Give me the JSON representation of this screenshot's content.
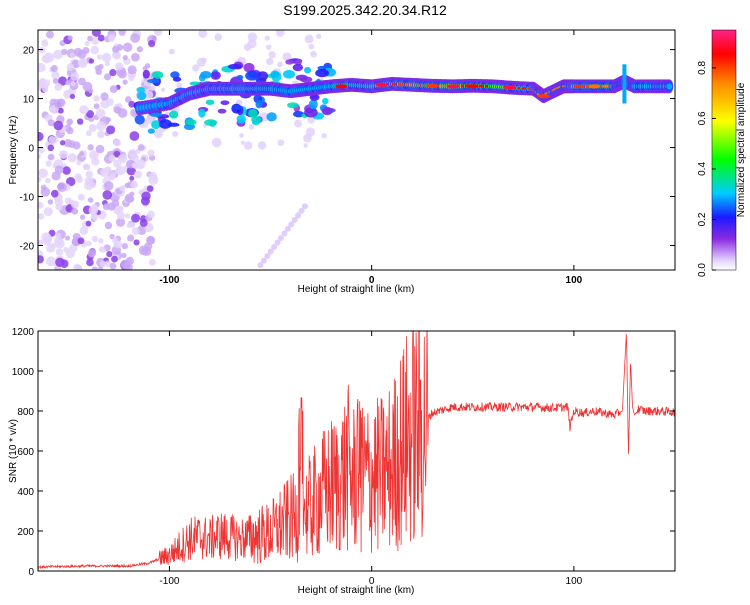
{
  "title": "S199.2025.342.20.34.R12",
  "chart_data": [
    {
      "type": "heatmap",
      "title": "S199.2025.342.20.34.R12",
      "xlabel": "Height of straight line (km)",
      "ylabel": "Frequency (Hz)",
      "xlim": [
        -165,
        150
      ],
      "ylim": [
        -25,
        24
      ],
      "xticks": [
        -100,
        0,
        100
      ],
      "yticks": [
        20,
        10,
        0,
        -10,
        -20
      ],
      "colorbar": {
        "label": "Normalized spectral amplitude",
        "ticks": [
          0.0,
          0.2,
          0.4,
          0.6,
          0.8
        ],
        "range": [
          0,
          0.95
        ]
      },
      "ridge": {
        "x": [
          -115,
          -100,
          -90,
          -80,
          -70,
          -60,
          -50,
          -40,
          -30,
          -20,
          -10,
          0,
          10,
          20,
          30,
          40,
          50,
          60,
          70,
          80,
          85,
          90,
          95,
          100,
          110,
          120,
          125,
          130,
          140,
          148
        ],
        "freq": [
          8,
          9,
          11,
          12,
          12,
          12,
          12,
          11.5,
          12,
          12.5,
          12.8,
          12.5,
          13,
          12.8,
          12.6,
          12.5,
          12.6,
          12.5,
          12.2,
          12.0,
          10.5,
          11.5,
          12.5,
          12.5,
          12.5,
          12.5,
          13.5,
          12.5,
          12.5,
          12.5
        ],
        "amplitude": [
          0.25,
          0.35,
          0.4,
          0.4,
          0.4,
          0.35,
          0.35,
          0.3,
          0.35,
          0.5,
          0.7,
          0.65,
          0.85,
          0.75,
          0.8,
          0.9,
          0.85,
          0.85,
          0.9,
          0.8,
          0.7,
          0.75,
          0.75,
          0.8,
          0.8,
          0.7,
          0.6,
          0.5,
          0.5,
          0.5
        ]
      }
    },
    {
      "type": "line",
      "xlabel": "Height of straight line (km)",
      "ylabel": "SNR (10 * v/v)",
      "xlim": [
        -165,
        150
      ],
      "ylim": [
        0,
        1200
      ],
      "xticks": [
        -100,
        0,
        100
      ],
      "yticks": [
        0,
        200,
        400,
        600,
        800,
        1000,
        1200
      ],
      "series": [
        {
          "name": "SNR",
          "color": "#ee3333",
          "x": [
            -165,
            -140,
            -120,
            -110,
            -100,
            -95,
            -90,
            -85,
            -80,
            -75,
            -70,
            -65,
            -60,
            -55,
            -50,
            -45,
            -40,
            -35,
            -30,
            -25,
            -20,
            -15,
            -12,
            -10,
            -5,
            0,
            5,
            10,
            15,
            20,
            25,
            30,
            40,
            50,
            60,
            70,
            80,
            90,
            97,
            98,
            100,
            105,
            110,
            115,
            120,
            124,
            126,
            127,
            128,
            129,
            130,
            132,
            135,
            140,
            150
          ],
          "y": [
            20,
            25,
            25,
            40,
            80,
            120,
            160,
            170,
            160,
            180,
            170,
            160,
            170,
            180,
            190,
            230,
            260,
            280,
            320,
            380,
            420,
            450,
            520,
            460,
            470,
            470,
            480,
            520,
            620,
            690,
            730,
            790,
            820,
            820,
            820,
            820,
            820,
            815,
            820,
            720,
            800,
            790,
            800,
            790,
            780,
            800,
            1200,
            560,
            1060,
            820,
            780,
            810,
            800,
            800,
            795
          ],
          "noise_start": -100,
          "noise_peak": [
            -35,
            900
          ],
          "noise_peak2": [
            -6,
            860
          ]
        }
      ]
    }
  ]
}
